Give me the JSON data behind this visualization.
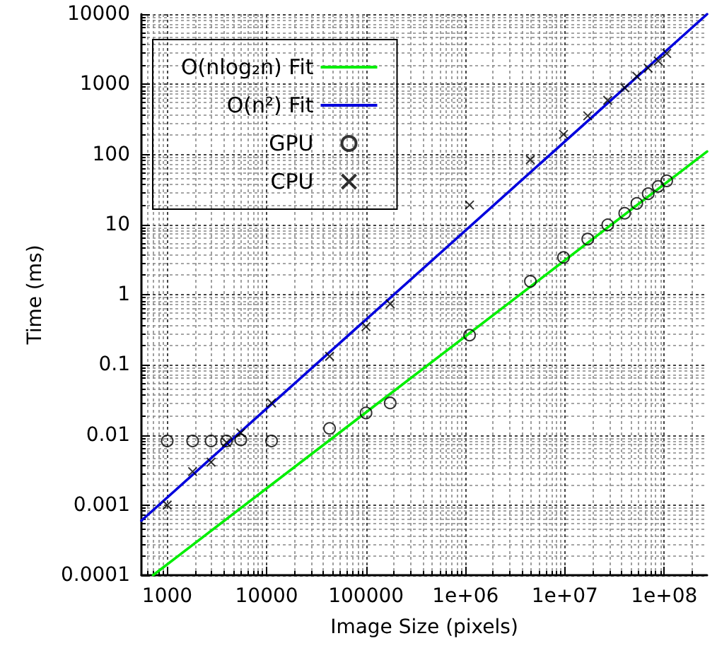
{
  "chart_data": {
    "type": "scatter",
    "xlabel": "Image Size (pixels)",
    "ylabel": "Time (ms)",
    "log": "xy",
    "grid": true,
    "legend": "top left",
    "xlim": [
      550,
      270000000
    ],
    "xticks": [
      1000,
      10000,
      100000,
      {
        "value": 1000000,
        "label": "1e+06"
      },
      {
        "value": 10000000,
        "label": "1e+07"
      },
      {
        "value": 100000000,
        "label": "1e+08"
      }
    ],
    "ylim": [
      0.0001,
      10000
    ],
    "yticks": [
      0.0001,
      0.001,
      0.01,
      0.1,
      1,
      10,
      100,
      1000,
      10000
    ],
    "series": [
      {
        "name": "O(nlog₂n) Fit",
        "type": "line",
        "marker": "none",
        "line_style": "solid",
        "color": "#00ee00",
        "x": [
          720,
          270000000
        ],
        "values": [
          0.0001,
          110
        ]
      },
      {
        "name": "O(n²) Fit",
        "type": "line",
        "marker": "none",
        "line_style": "solid",
        "color": "#0000dd",
        "x": [
          550,
          270000000
        ],
        "values": [
          0.0006,
          10000
        ]
      },
      {
        "name": "GPU",
        "marker": "circle",
        "color": "#000000",
        "x": [
          1000,
          1800,
          2760,
          3950,
          5500,
          11200,
          43000,
          100000,
          175000,
          1100000,
          4500000,
          9700000,
          17000000,
          27000000,
          40000000,
          53000000,
          69000000,
          87000000,
          106000000
        ],
        "values": [
          0.0082,
          0.0082,
          0.0082,
          0.0082,
          0.0085,
          0.0082,
          0.0124,
          0.0206,
          0.0286,
          0.265,
          1.55,
          3.4,
          6.2,
          9.9,
          14.5,
          20,
          27.5,
          35,
          42
        ]
      },
      {
        "name": "CPU",
        "marker": "cross",
        "color": "#000000",
        "x": [
          1000,
          1800,
          2760,
          3950,
          5500,
          11200,
          43000,
          100000,
          175000,
          1100000,
          4500000,
          9700000,
          17000000,
          27000000,
          40000000,
          53000000,
          69000000,
          87000000,
          106000000
        ],
        "values": [
          0.001,
          0.003,
          0.0041,
          0.0078,
          0.0107,
          0.0286,
          0.132,
          0.35,
          0.74,
          19,
          84,
          193,
          355,
          590,
          890,
          1300,
          1700,
          2150,
          2750
        ]
      }
    ]
  }
}
